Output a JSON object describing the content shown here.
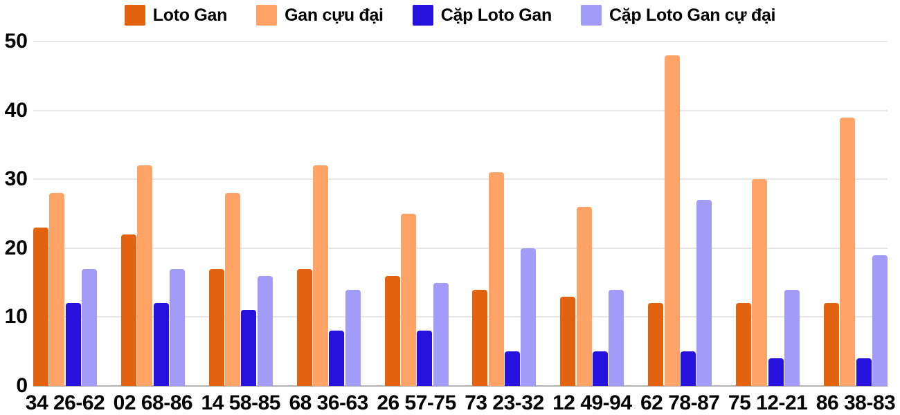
{
  "chart_data": {
    "type": "bar",
    "title": "",
    "xlabel": "",
    "ylabel": "",
    "categories": [
      "34 26-62",
      "02 68-86",
      "14 58-85",
      "68 36-63",
      "26 57-75",
      "73 23-32",
      "12 49-94",
      "62 78-87",
      "75 12-21",
      "86 38-83"
    ],
    "series": [
      {
        "name": "Loto Gan",
        "color": "#e2620f",
        "values": [
          23,
          22,
          17,
          17,
          16,
          14,
          13,
          12,
          12,
          12
        ]
      },
      {
        "name": "Gan cựu đại",
        "color": "#ffa366",
        "values": [
          28,
          32,
          28,
          32,
          25,
          31,
          26,
          48,
          30,
          39
        ]
      },
      {
        "name": "Cặp Loto Gan",
        "color": "#2612dc",
        "values": [
          12,
          12,
          11,
          8,
          8,
          5,
          5,
          5,
          4,
          4
        ]
      },
      {
        "name": "Cặp Loto Gan cự đại",
        "color": "#a29bf8",
        "values": [
          17,
          17,
          16,
          14,
          15,
          20,
          14,
          27,
          14,
          19
        ]
      }
    ],
    "y_ticks": [
      0,
      10,
      20,
      30,
      40,
      50
    ],
    "ylim": [
      0,
      50
    ],
    "grid": true,
    "legend_position": "top"
  },
  "colors": {
    "background": "#ffffff",
    "grid_line": "#e6e6e6",
    "axis_line": "#b3b3b3",
    "text": "#000000"
  }
}
